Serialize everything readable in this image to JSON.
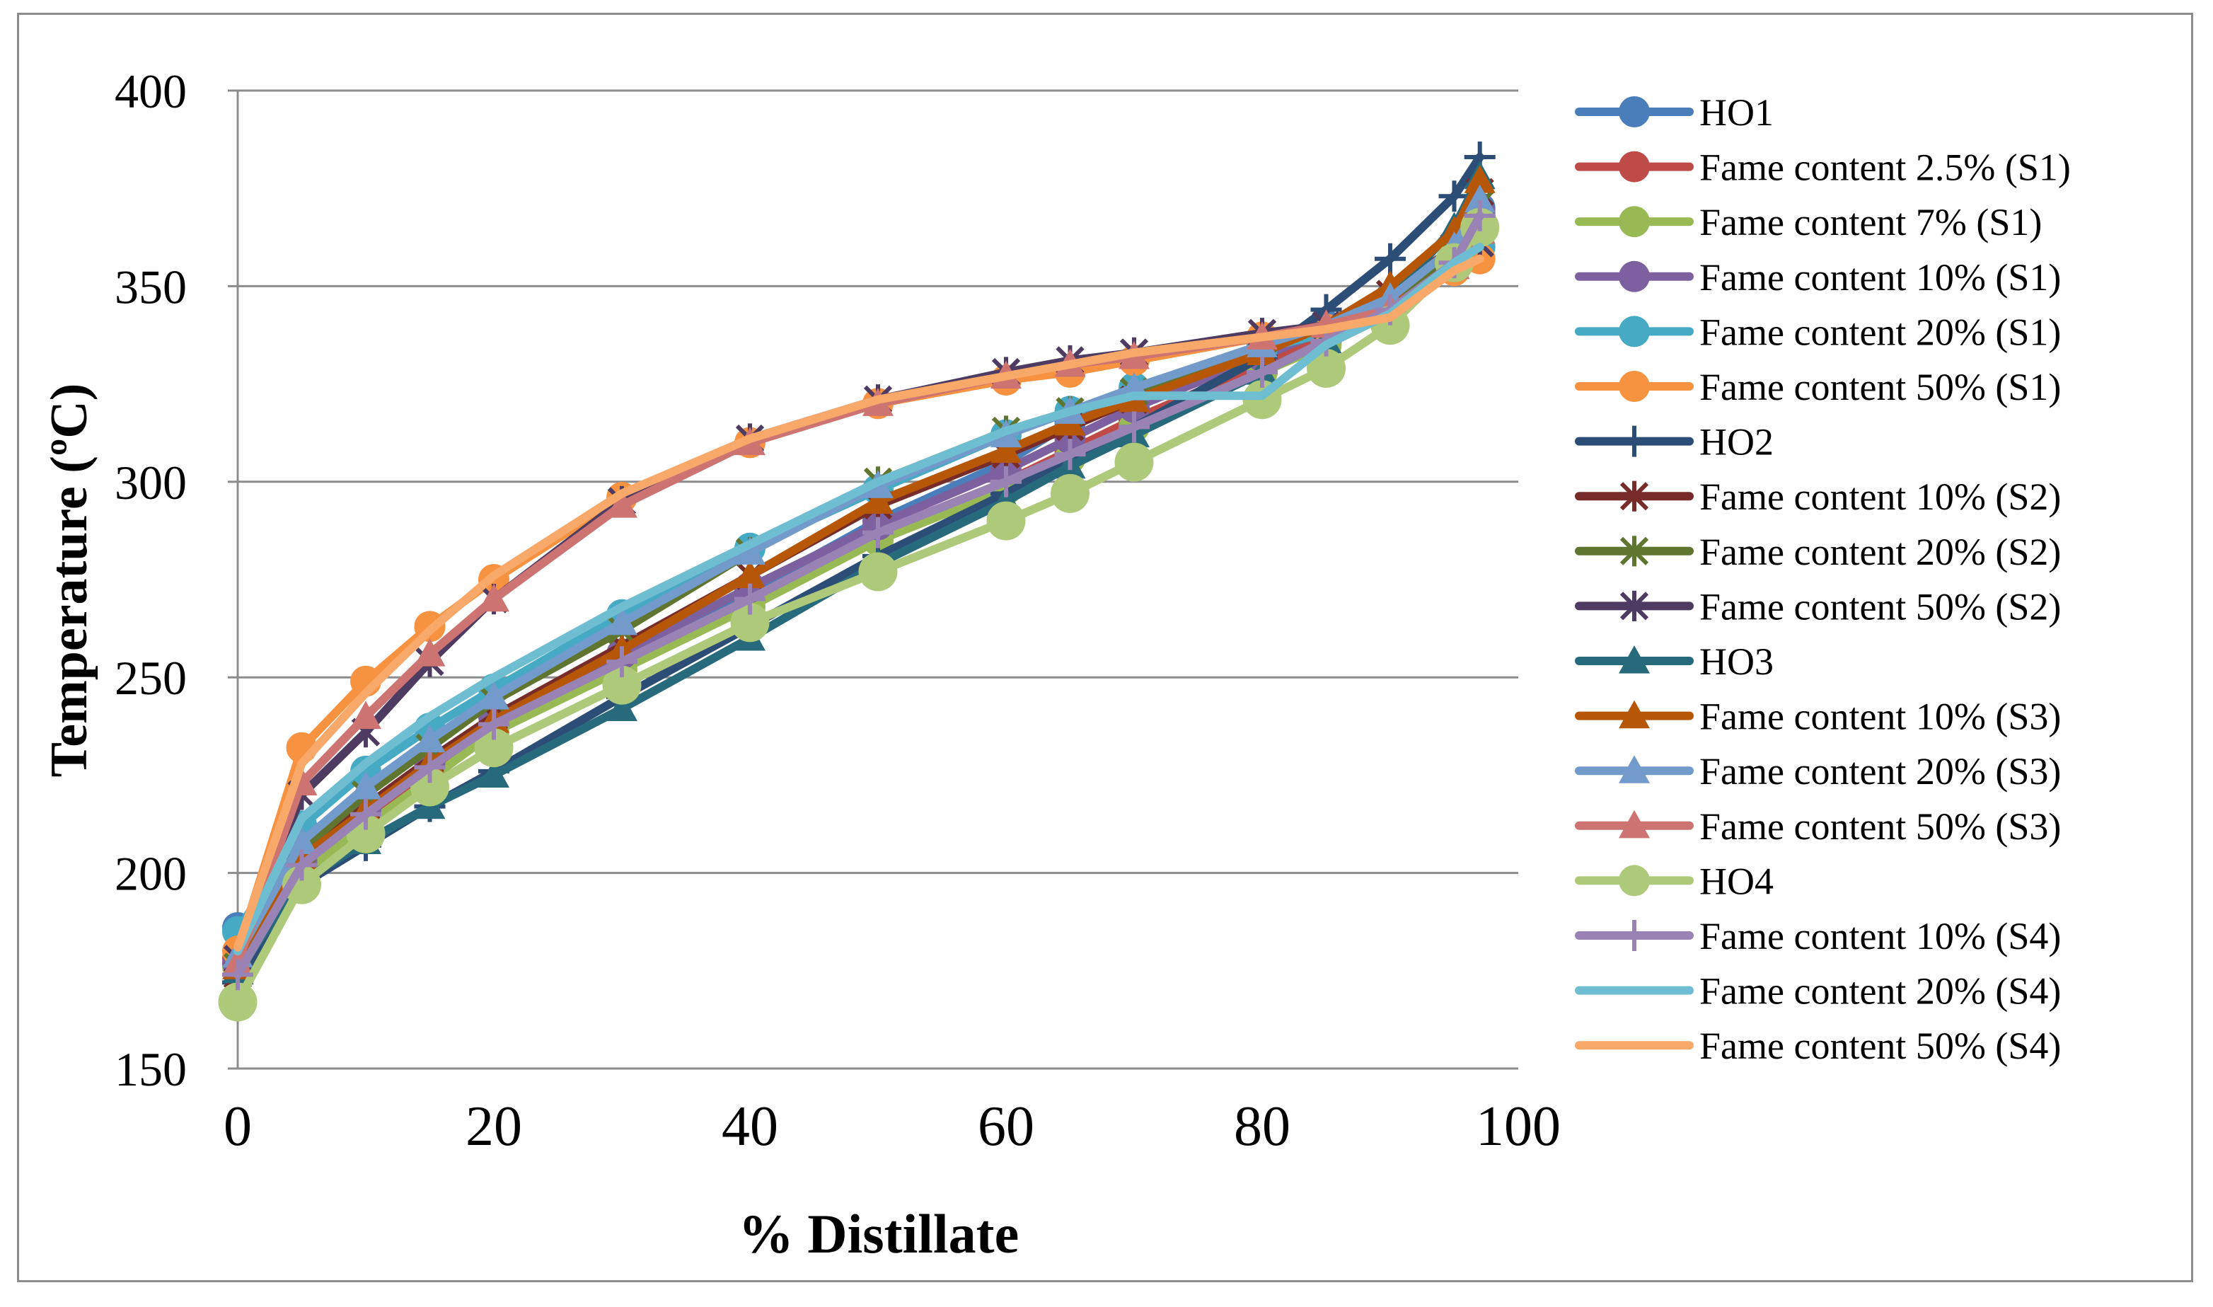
{
  "chart_data": {
    "type": "line",
    "title": "",
    "xlabel": "% Distillate",
    "ylabel": "Temperature (ºC)",
    "xlim": [
      0,
      100
    ],
    "ylim": [
      150,
      400
    ],
    "xticks": [
      0,
      20,
      40,
      60,
      80,
      100
    ],
    "yticks": [
      150,
      200,
      250,
      300,
      350,
      400
    ],
    "x_tick_labels": [
      "0",
      "20",
      "40",
      "60",
      "80",
      "100"
    ],
    "y_tick_labels": [
      "150",
      "200",
      "250",
      "300",
      "350",
      "400"
    ],
    "grid": "horizontal",
    "legend_position": "right",
    "x": [
      0,
      5,
      10,
      15,
      20,
      30,
      40,
      50,
      60,
      65,
      70,
      80,
      85,
      90,
      95,
      97
    ],
    "series": [
      {
        "name": "HO1",
        "color": "#4a7ebb",
        "marker": "circle",
        "values": [
          186,
          205,
          217,
          228,
          240,
          255,
          272,
          290,
          305,
          315,
          323,
          335,
          340,
          347,
          357,
          370
        ]
      },
      {
        "name": "Fame content 2.5% (S1)",
        "color": "#be4b48",
        "marker": "circle",
        "values": [
          178,
          202,
          214,
          226,
          238,
          254,
          270,
          287,
          300,
          308,
          316,
          330,
          337,
          345,
          356,
          368
        ]
      },
      {
        "name": "Fame content 7% (S1)",
        "color": "#98b954",
        "marker": "circle",
        "values": [
          176,
          200,
          212,
          224,
          236,
          252,
          268,
          285,
          298,
          306,
          314,
          328,
          335,
          343,
          355,
          366
        ]
      },
      {
        "name": "Fame content 10% (S1)",
        "color": "#7d60a0",
        "marker": "circle",
        "values": [
          177,
          203,
          216,
          228,
          240,
          256,
          273,
          289,
          303,
          311,
          319,
          332,
          339,
          346,
          356,
          369
        ]
      },
      {
        "name": "Fame content 20% (S1)",
        "color": "#46aac5",
        "marker": "circle",
        "values": [
          185,
          212,
          226,
          237,
          247,
          266,
          283,
          298,
          312,
          318,
          324,
          334,
          338,
          344,
          356,
          360
        ]
      },
      {
        "name": "Fame content 50% (S1)",
        "color": "#f69240",
        "marker": "circle",
        "values": [
          180,
          232,
          249,
          263,
          275,
          296,
          310,
          320,
          326,
          328,
          331,
          337,
          339,
          342,
          354,
          357
        ]
      },
      {
        "name": "HO2",
        "color": "#2c4d75",
        "marker": "plus",
        "values": [
          172,
          197,
          207,
          217,
          226,
          245,
          263,
          281,
          297,
          306,
          314,
          332,
          344,
          357,
          373,
          383
        ]
      },
      {
        "name": "Fame content 10% (S2)",
        "color": "#772c2a",
        "marker": "star",
        "values": [
          174,
          204,
          217,
          229,
          240,
          258,
          276,
          294,
          307,
          314,
          321,
          334,
          340,
          348,
          360,
          374
        ]
      },
      {
        "name": "Fame content 20% (S2)",
        "color": "#5f7530",
        "marker": "star",
        "values": [
          176,
          206,
          220,
          232,
          244,
          262,
          282,
          300,
          313,
          318,
          323,
          335,
          340,
          346,
          358,
          371
        ]
      },
      {
        "name": "Fame content 50% (S2)",
        "color": "#4d3b62",
        "marker": "star",
        "values": [
          178,
          220,
          236,
          254,
          270,
          295,
          311,
          321,
          328,
          331,
          333,
          338,
          340,
          343,
          356,
          361
        ]
      },
      {
        "name": "HO3",
        "color": "#276a7c",
        "marker": "triangle",
        "values": [
          175,
          198,
          208,
          217,
          225,
          242,
          260,
          279,
          295,
          304,
          312,
          328,
          336,
          347,
          365,
          378
        ]
      },
      {
        "name": "Fame content 10% (S3)",
        "color": "#b65708",
        "marker": "triangle",
        "values": [
          176,
          204,
          216,
          228,
          239,
          257,
          276,
          295,
          308,
          315,
          321,
          333,
          340,
          350,
          364,
          377
        ]
      },
      {
        "name": "Fame content 20% (S3)",
        "color": "#729aca",
        "marker": "triangle",
        "values": [
          179,
          208,
          222,
          234,
          245,
          264,
          282,
          299,
          312,
          318,
          324,
          335,
          340,
          347,
          360,
          372
        ]
      },
      {
        "name": "Fame content 50% (S3)",
        "color": "#cd7371",
        "marker": "triangle",
        "values": [
          177,
          223,
          240,
          256,
          270,
          294,
          310,
          320,
          327,
          330,
          332,
          337,
          340,
          344,
          355,
          364
        ]
      },
      {
        "name": "HO4",
        "color": "#afc97a",
        "marker": "circle",
        "values": [
          167,
          197,
          210,
          222,
          232,
          248,
          264,
          277,
          290,
          297,
          305,
          321,
          329,
          340,
          356,
          365
        ]
      },
      {
        "name": "Fame content 10% (S4)",
        "color": "#9983b5",
        "marker": "plus",
        "values": [
          174,
          202,
          215,
          227,
          238,
          254,
          270,
          287,
          300,
          307,
          314,
          328,
          336,
          344,
          356,
          368
        ]
      },
      {
        "name": "Fame content 20% (S4)",
        "color": "#6fbdd1",
        "marker": "none",
        "values": [
          180,
          214,
          228,
          240,
          250,
          268,
          284,
          300,
          313,
          318,
          322,
          322,
          335,
          343,
          356,
          360
        ]
      },
      {
        "name": "Fame content 50% (S4)",
        "color": "#f8a869",
        "marker": "none",
        "values": [
          181,
          228,
          246,
          262,
          276,
          297,
          311,
          321,
          327,
          330,
          333,
          337,
          339,
          342,
          354,
          357
        ]
      }
    ]
  }
}
